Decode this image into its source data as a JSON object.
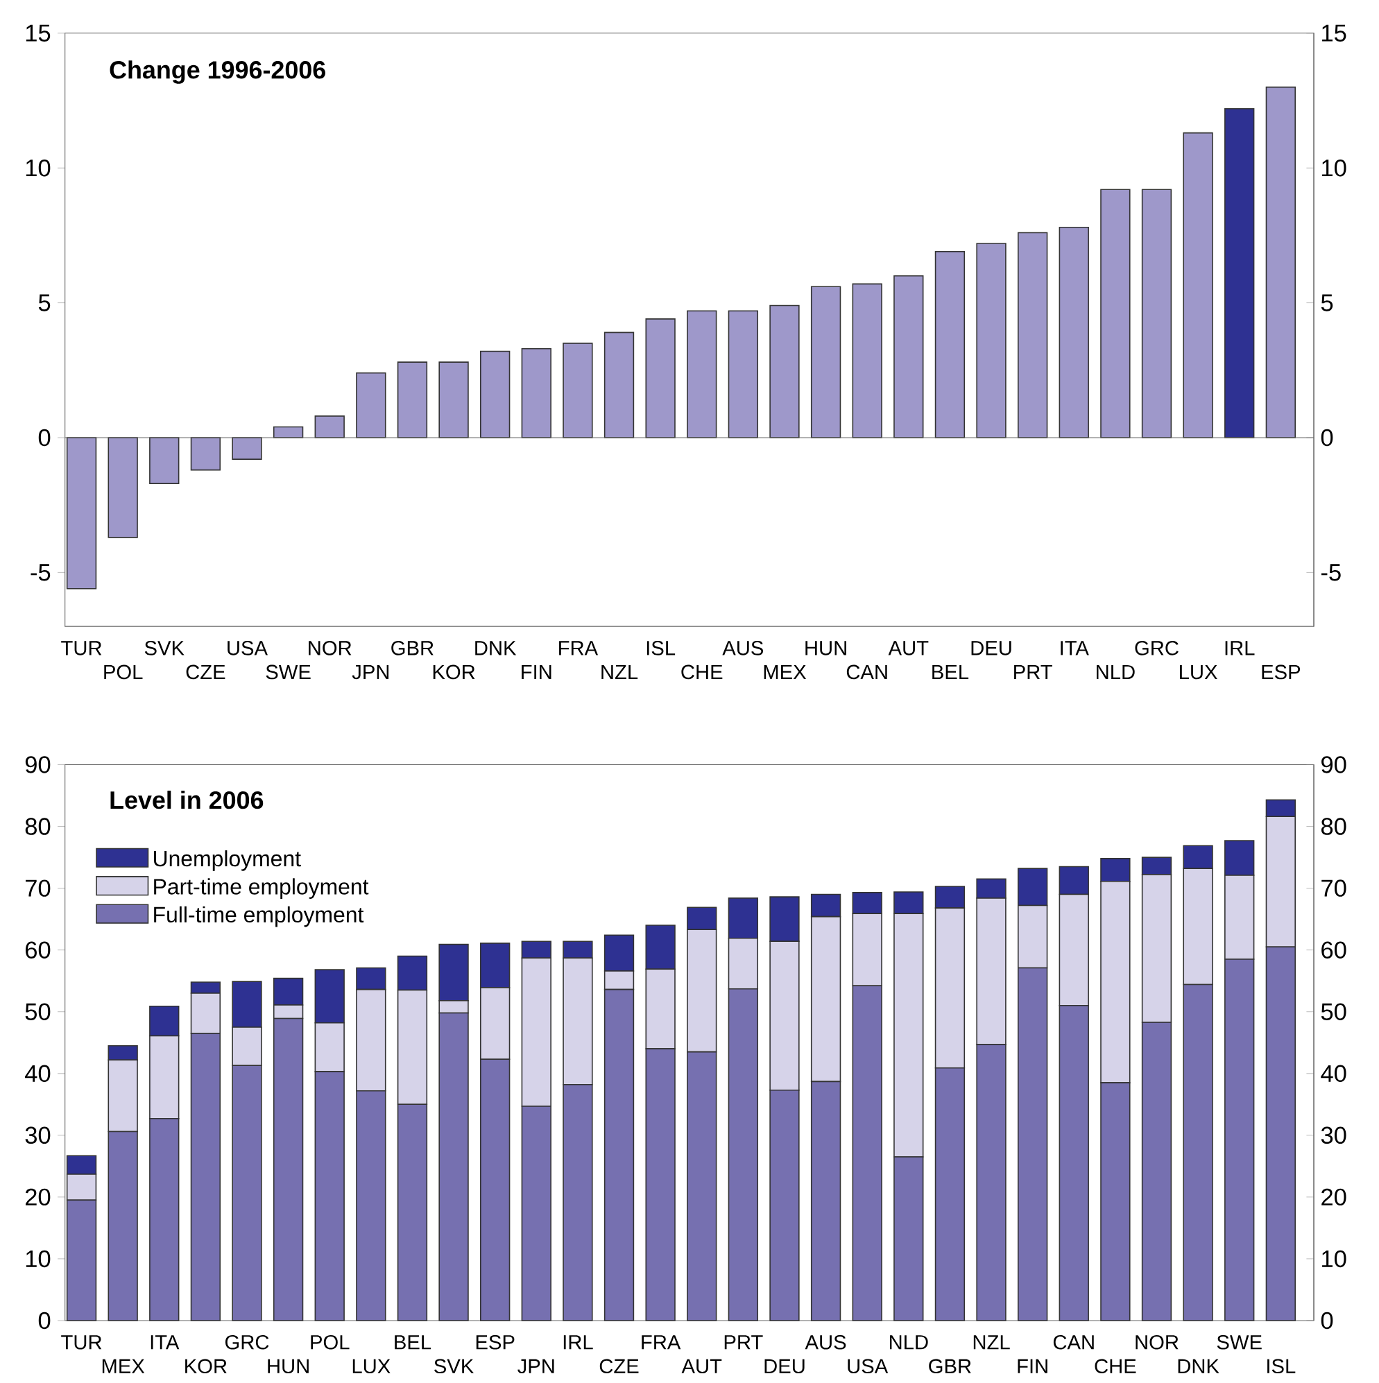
{
  "chart_data": [
    {
      "type": "bar",
      "title": "Change 1996-2006",
      "categories": [
        "TUR",
        "POL",
        "SVK",
        "CZE",
        "USA",
        "SWE",
        "NOR",
        "JPN",
        "GBR",
        "KOR",
        "DNK",
        "FIN",
        "FRA",
        "NZL",
        "ISL",
        "CHE",
        "AUS",
        "MEX",
        "HUN",
        "CAN",
        "AUT",
        "BEL",
        "DEU",
        "PRT",
        "ITA",
        "NLD",
        "GRC",
        "LUX",
        "IRL",
        "ESP"
      ],
      "values": [
        -5.6,
        -3.7,
        -1.7,
        -1.2,
        -0.8,
        0.4,
        0.8,
        2.4,
        2.8,
        2.8,
        3.2,
        3.3,
        3.5,
        3.9,
        4.4,
        4.7,
        4.7,
        4.9,
        5.6,
        5.7,
        6.0,
        6.9,
        7.2,
        7.6,
        7.8,
        9.2,
        9.2,
        11.3,
        12.2,
        13.0
      ],
      "colors": [
        "#9e98ca",
        "#9e98ca",
        "#9e98ca",
        "#9e98ca",
        "#9e98ca",
        "#9e98ca",
        "#9e98ca",
        "#9e98ca",
        "#9e98ca",
        "#9e98ca",
        "#9e98ca",
        "#9e98ca",
        "#9e98ca",
        "#9e98ca",
        "#9e98ca",
        "#9e98ca",
        "#9e98ca",
        "#9e98ca",
        "#9e98ca",
        "#9e98ca",
        "#9e98ca",
        "#9e98ca",
        "#9e98ca",
        "#9e98ca",
        "#9e98ca",
        "#9e98ca",
        "#9e98ca",
        "#9e98ca",
        "#2e3192",
        "#9e98ca"
      ],
      "ylim": [
        -7,
        15
      ],
      "yticks": [
        -5,
        0,
        5,
        10,
        15
      ],
      "y2lim": [
        -7,
        15
      ],
      "y2ticks": [
        -5,
        0,
        5,
        10,
        15
      ]
    },
    {
      "type": "bar",
      "title": "Level in 2006",
      "stacked": true,
      "legend": "top left",
      "categories": [
        "TUR",
        "MEX",
        "ITA",
        "KOR",
        "GRC",
        "HUN",
        "POL",
        "LUX",
        "BEL",
        "SVK",
        "ESP",
        "JPN",
        "IRL",
        "CZE",
        "FRA",
        "AUT",
        "PRT",
        "DEU",
        "AUS",
        "USA",
        "NLD",
        "GBR",
        "NZL",
        "FIN",
        "CAN",
        "CHE",
        "NOR",
        "DNK",
        "SWE",
        "ISL"
      ],
      "series": [
        {
          "name": "Full-time employment",
          "color": "#7670b0",
          "values": [
            19.5,
            30.6,
            32.7,
            46.5,
            41.3,
            48.9,
            40.3,
            37.2,
            35.0,
            49.8,
            42.3,
            34.7,
            38.2,
            53.6,
            44.0,
            43.5,
            53.7,
            37.3,
            38.7,
            54.2,
            26.5,
            40.9,
            44.7,
            57.1,
            51.0,
            38.5,
            48.3,
            54.4,
            58.5,
            60.5
          ]
        },
        {
          "name": "Part-time employment",
          "color": "#d6d3e9",
          "values": [
            4.2,
            11.6,
            13.4,
            6.5,
            6.2,
            2.2,
            7.9,
            16.4,
            18.5,
            2.0,
            11.6,
            24.0,
            20.5,
            3.0,
            12.9,
            19.8,
            8.2,
            24.1,
            26.7,
            11.7,
            39.4,
            25.9,
            23.7,
            10.1,
            18.0,
            32.6,
            23.9,
            18.8,
            13.6,
            21.1
          ]
        },
        {
          "name": "Unemployment",
          "color": "#2e3192",
          "values": [
            3.0,
            2.3,
            4.8,
            1.8,
            7.4,
            4.3,
            8.6,
            3.5,
            5.5,
            9.1,
            7.2,
            2.7,
            2.7,
            5.8,
            7.1,
            3.6,
            6.5,
            7.2,
            3.6,
            3.4,
            3.5,
            3.5,
            3.1,
            6.0,
            4.5,
            3.7,
            2.8,
            3.7,
            5.6,
            2.7
          ]
        }
      ],
      "ylim": [
        0,
        90
      ],
      "yticks": [
        0,
        10,
        20,
        30,
        40,
        50,
        60,
        70,
        80,
        90
      ],
      "y2lim": [
        0,
        90
      ],
      "y2ticks": [
        0,
        10,
        20,
        30,
        40,
        50,
        60,
        70,
        80,
        90
      ]
    }
  ]
}
